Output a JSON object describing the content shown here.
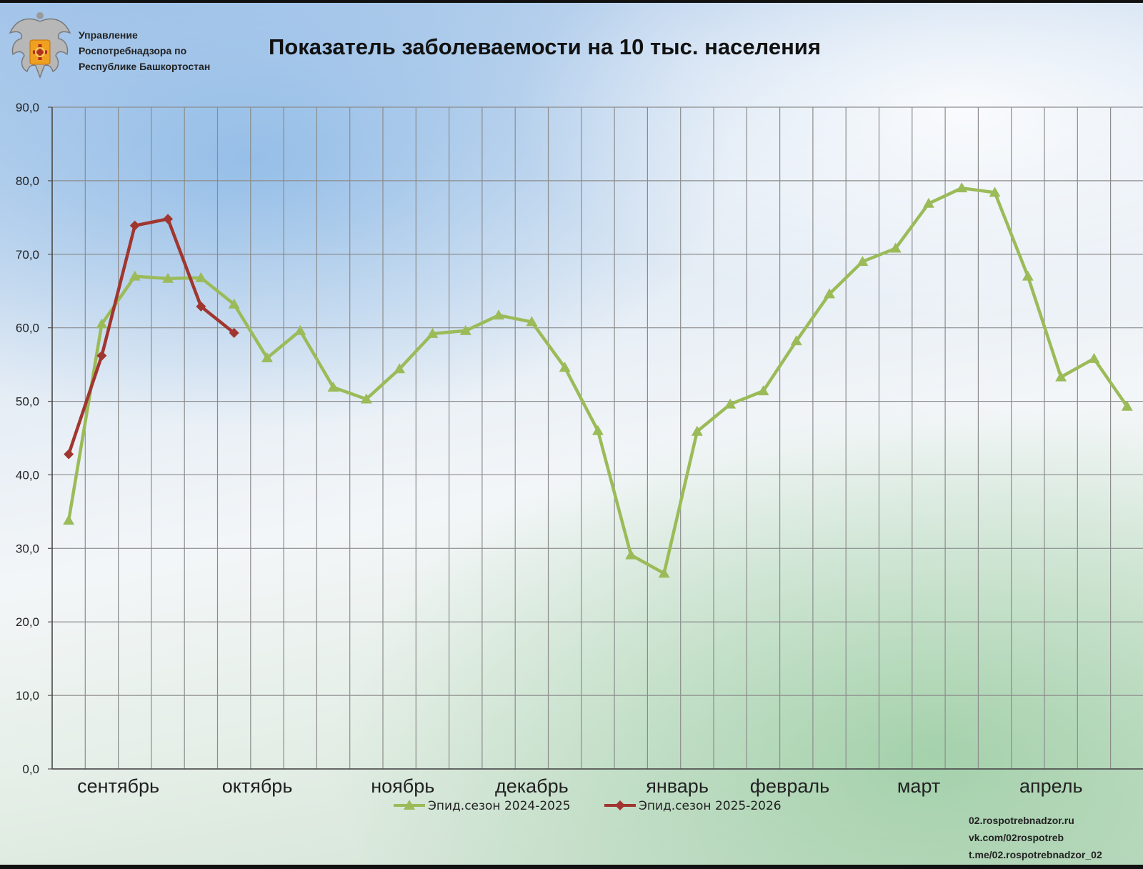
{
  "header": {
    "org_lines": [
      "Управление",
      "Роспотребнадзора по",
      "Республике Башкортостан"
    ],
    "title": "Показатель заболеваемости на 10 тыс. населения"
  },
  "footer_links": [
    "02.rospotrebnadzor.ru",
    "vk.com/02rospotreb",
    "t.me/02.rospotrebnadzor_02"
  ],
  "colors": {
    "series_2024": "#9bbb59",
    "series_2025": "#a0362f",
    "grid": "#8c8c8c"
  },
  "chart_data": {
    "type": "line",
    "title": "Показатель заболеваемости на 10 тыс. населения",
    "ylim": [
      0,
      90
    ],
    "y_ticks": [
      "0,0",
      "10,0",
      "20,0",
      "30,0",
      "40,0",
      "50,0",
      "60,0",
      "70,0",
      "80,0",
      "90,0"
    ],
    "month_labels": [
      "сентябрь",
      "октябрь",
      "ноябрь",
      "декабрь",
      "январь",
      "февраль",
      "март",
      "апрель"
    ],
    "grid": true,
    "legend_position": "bottom",
    "series": [
      {
        "name": "Эпид.сезон 2024-2025",
        "marker": "triangle",
        "values": [
          33.8,
          60.5,
          67.0,
          66.7,
          66.8,
          63.2,
          55.9,
          59.6,
          51.9,
          50.3,
          54.4,
          59.2,
          59.6,
          61.7,
          60.8,
          54.6,
          46.0,
          29.1,
          26.6,
          45.9,
          49.6,
          51.4,
          58.2,
          64.6,
          69.0,
          70.8,
          76.9,
          79.0,
          78.4,
          67.0,
          53.3,
          55.8,
          49.3
        ]
      },
      {
        "name": "Эпид.сезон 2025-2026",
        "marker": "diamond",
        "values": [
          42.8,
          56.2,
          73.9,
          74.8,
          62.9,
          59.3
        ]
      }
    ]
  }
}
